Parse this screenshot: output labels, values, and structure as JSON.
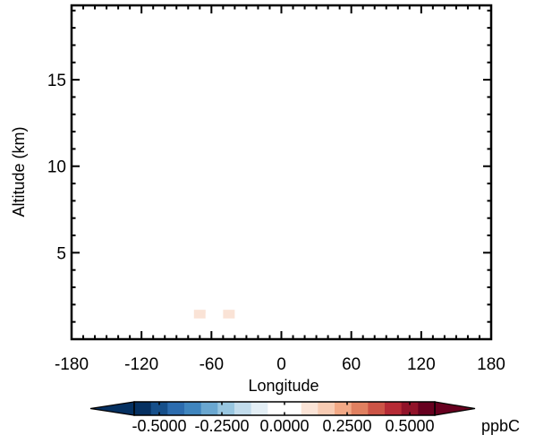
{
  "chart_data": {
    "type": "heatmap",
    "xlabel": "Longitude",
    "ylabel": "Altitude (km)",
    "xlim": [
      -180,
      180
    ],
    "ylim": [
      0,
      19.3
    ],
    "x_ticks": [
      -180,
      -120,
      -60,
      0,
      60,
      120,
      180
    ],
    "x_tick_labels": [
      "-180",
      "-120",
      "-60",
      "0",
      "60",
      "120",
      "180"
    ],
    "y_ticks": [
      5,
      10,
      15
    ],
    "y_tick_labels": [
      "5",
      "10",
      "15"
    ],
    "grid": false,
    "cells": [
      {
        "lon0": -75,
        "lon1": -70,
        "alt0": 0,
        "alt1": 2.2,
        "value": 0.04
      },
      {
        "lon0": -70,
        "lon1": -65,
        "alt0": 0,
        "alt1": 2.2,
        "value": 0.04
      },
      {
        "lon0": -75,
        "lon1": -65,
        "alt0": 1.2,
        "alt1": 1.7,
        "value": 0.07
      },
      {
        "lon0": -65,
        "lon1": -60,
        "alt0": 0,
        "alt1": 1.5,
        "value": 0.04
      },
      {
        "lon0": -60,
        "lon1": -55,
        "alt0": 0,
        "alt1": 1.3,
        "value": 0.04
      },
      {
        "lon0": -55,
        "lon1": -50,
        "alt0": 0,
        "alt1": 1.6,
        "value": 0.04
      },
      {
        "lon0": -50,
        "lon1": -45,
        "alt0": 0,
        "alt1": 2.2,
        "value": 0.04
      },
      {
        "lon0": -45,
        "lon1": -40,
        "alt0": 0,
        "alt1": 2.2,
        "value": 0.04
      },
      {
        "lon0": -50,
        "lon1": -40,
        "alt0": 1.2,
        "alt1": 1.7,
        "value": 0.07
      }
    ],
    "colorbar": {
      "range": [
        -0.6,
        0.6
      ],
      "tick_values": [
        -0.5,
        -0.25,
        0,
        0.25,
        0.5
      ],
      "tick_labels": [
        "-0.5000",
        "-0.2500",
        "0.0000",
        "0.2500",
        "0.5000"
      ],
      "unit": "ppbC",
      "extend": "both",
      "colors": [
        "#053061",
        "#164f8a",
        "#2c6cae",
        "#3f85be",
        "#6aa7d0",
        "#98c6e0",
        "#c2dcec",
        "#e3eef5",
        "#ffffff",
        "#ffffff",
        "#fae3d6",
        "#f7cbb3",
        "#f2a986",
        "#e08060",
        "#cc5446",
        "#b62b35",
        "#911329",
        "#67001f"
      ],
      "under_color": "#053061",
      "over_color": "#67001f"
    }
  }
}
